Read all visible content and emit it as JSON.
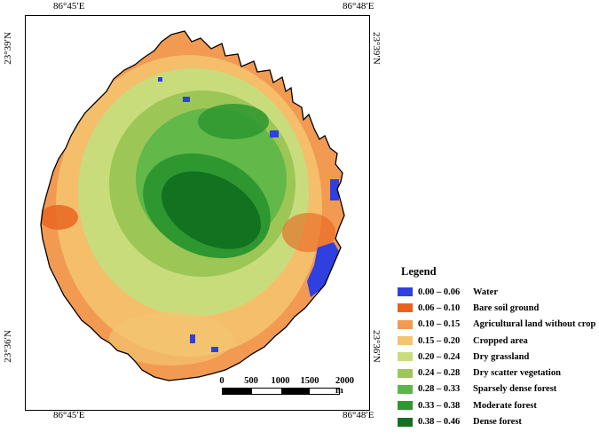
{
  "coords": {
    "top_left": "86°45′E",
    "top_right": "86°48′E",
    "bottom_left": "86°45′E",
    "bottom_right": "86°48′E",
    "left_upper": "23°39′N",
    "left_lower": "23°36′N",
    "right_upper": "23°39′N",
    "right_lower": "23°36′N"
  },
  "legend": {
    "title": "Legend",
    "items": [
      {
        "range": "0.00 – 0.06",
        "label": "Water",
        "color": "#2f3fe0"
      },
      {
        "range": "0.06 – 0.10",
        "label": "Bare soil ground",
        "color": "#e8621e"
      },
      {
        "range": "0.10 – 0.15",
        "label": "Agricultural land without crop",
        "color": "#f29a52"
      },
      {
        "range": "0.15 – 0.20",
        "label": "Cropped area",
        "color": "#f4c470"
      },
      {
        "range": "0.20 – 0.24",
        "label": "Dry grassland",
        "color": "#c9dc7c"
      },
      {
        "range": "0.24 – 0.28",
        "label": "Dry scatter vegetation",
        "color": "#9cc756"
      },
      {
        "range": "0.28 – 0.33",
        "label": "Sparsely dense forest",
        "color": "#5cb648"
      },
      {
        "range": "0.33 – 0.38",
        "label": "Moderate forest",
        "color": "#2e9730"
      },
      {
        "range": "0.38 – 0.46",
        "label": "Dense forest",
        "color": "#137220"
      }
    ]
  },
  "scale": {
    "labels": [
      "0",
      "500",
      "1000",
      "1500",
      "2000 m"
    ]
  },
  "map": {
    "colors": {
      "outer": "#f29a52",
      "crop": "#f4c470",
      "grass": "#c9dc7c",
      "scatter": "#9cc756",
      "sparse": "#5cb648",
      "moderate": "#2e9730",
      "dense": "#137220",
      "water": "#2f3fe0",
      "bare": "#e8621e"
    }
  }
}
